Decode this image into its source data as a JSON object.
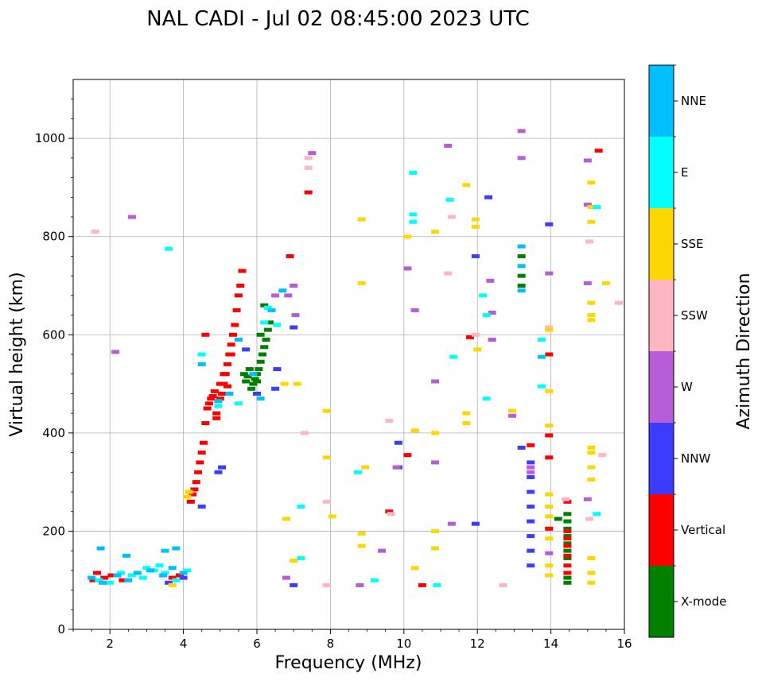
{
  "chart_data": {
    "type": "scatter",
    "title": "NAL CADI - Jul 02 08:45:00 2023 UTC",
    "xlabel": "Frequency (MHz)",
    "ylabel": "Virtual height (km)",
    "xlim": [
      1,
      16
    ],
    "ylim": [
      0,
      1120
    ],
    "xticks": [
      2,
      4,
      6,
      8,
      10,
      12,
      14,
      16
    ],
    "yticks": [
      0,
      200,
      400,
      600,
      800,
      1000
    ],
    "grid": true,
    "colorbar": {
      "label": "Azimuth Direction",
      "entries": [
        {
          "name": "X-mode",
          "color": "#008000"
        },
        {
          "name": "Vertical",
          "color": "#ff0000"
        },
        {
          "name": "NNW",
          "color": "#3c3cff"
        },
        {
          "name": "W",
          "color": "#b65cd6"
        },
        {
          "name": "SSW",
          "color": "#ffb6c1"
        },
        {
          "name": "SSE",
          "color": "#ffd700"
        },
        {
          "name": "E",
          "color": "#00ffff"
        },
        {
          "name": "NNE",
          "color": "#00bfff"
        }
      ]
    },
    "series": [
      {
        "name": "X-mode",
        "points": [
          [
            5.85,
            490
          ],
          [
            5.9,
            500
          ],
          [
            5.95,
            510
          ],
          [
            6.0,
            520
          ],
          [
            6.05,
            530
          ],
          [
            6.1,
            545
          ],
          [
            6.15,
            560
          ],
          [
            6.2,
            575
          ],
          [
            6.25,
            590
          ],
          [
            6.3,
            610
          ],
          [
            6.35,
            625
          ],
          [
            6.2,
            660
          ],
          [
            5.7,
            505
          ],
          [
            5.75,
            515
          ],
          [
            5.8,
            530
          ],
          [
            5.65,
            520
          ],
          [
            6.0,
            505
          ],
          [
            6.1,
            600
          ],
          [
            14.45,
            95
          ],
          [
            14.45,
            105
          ],
          [
            14.45,
            145
          ],
          [
            14.45,
            160
          ],
          [
            14.45,
            175
          ],
          [
            14.45,
            190
          ],
          [
            14.45,
            205
          ],
          [
            14.45,
            220
          ],
          [
            14.45,
            235
          ],
          [
            14.2,
            225
          ],
          [
            13.2,
            700
          ],
          [
            13.2,
            720
          ],
          [
            13.2,
            760
          ]
        ]
      },
      {
        "name": "Vertical",
        "points": [
          [
            1.55,
            100
          ],
          [
            1.65,
            115
          ],
          [
            1.85,
            105
          ],
          [
            2.05,
            110
          ],
          [
            2.35,
            100
          ],
          [
            3.7,
            105
          ],
          [
            3.9,
            110
          ],
          [
            4.2,
            260
          ],
          [
            4.25,
            275
          ],
          [
            4.3,
            285
          ],
          [
            4.35,
            300
          ],
          [
            4.4,
            320
          ],
          [
            4.45,
            340
          ],
          [
            4.5,
            360
          ],
          [
            4.55,
            380
          ],
          [
            4.6,
            420
          ],
          [
            4.65,
            450
          ],
          [
            4.7,
            460
          ],
          [
            4.75,
            470
          ],
          [
            4.8,
            475
          ],
          [
            4.85,
            485
          ],
          [
            4.9,
            440
          ],
          [
            4.95,
            455
          ],
          [
            5.0,
            470
          ],
          [
            5.05,
            480
          ],
          [
            5.1,
            500
          ],
          [
            5.15,
            520
          ],
          [
            5.2,
            540
          ],
          [
            5.25,
            560
          ],
          [
            5.3,
            580
          ],
          [
            5.35,
            600
          ],
          [
            5.4,
            620
          ],
          [
            5.45,
            650
          ],
          [
            5.5,
            680
          ],
          [
            5.55,
            700
          ],
          [
            5.6,
            730
          ],
          [
            4.6,
            600
          ],
          [
            5.0,
            500
          ],
          [
            5.2,
            495
          ],
          [
            5.3,
            560
          ],
          [
            5.1,
            520
          ],
          [
            4.9,
            430
          ],
          [
            6.9,
            760
          ],
          [
            7.4,
            890
          ],
          [
            9.6,
            240
          ],
          [
            10.1,
            355
          ],
          [
            10.5,
            90
          ],
          [
            11.8,
            595
          ],
          [
            13.45,
            375
          ],
          [
            13.95,
            560
          ],
          [
            13.95,
            395
          ],
          [
            13.95,
            350
          ],
          [
            13.95,
            205
          ],
          [
            14.45,
            115
          ],
          [
            14.45,
            130
          ],
          [
            14.45,
            150
          ],
          [
            14.45,
            170
          ],
          [
            14.45,
            185
          ],
          [
            14.45,
            200
          ],
          [
            14.45,
            260
          ],
          [
            15.3,
            975
          ]
        ]
      },
      {
        "name": "NNW",
        "points": [
          [
            3.6,
            95
          ],
          [
            4.0,
            105
          ],
          [
            4.5,
            250
          ],
          [
            5.05,
            330
          ],
          [
            4.95,
            320
          ],
          [
            5.7,
            570
          ],
          [
            6.0,
            480
          ],
          [
            6.5,
            490
          ],
          [
            6.55,
            530
          ],
          [
            7.0,
            615
          ],
          [
            7.0,
            90
          ],
          [
            9.85,
            380
          ],
          [
            9.85,
            330
          ],
          [
            11.95,
            215
          ],
          [
            11.95,
            760
          ],
          [
            12.3,
            880
          ],
          [
            13.2,
            370
          ],
          [
            13.45,
            340
          ],
          [
            13.45,
            310
          ],
          [
            13.45,
            280
          ],
          [
            13.45,
            250
          ],
          [
            13.45,
            220
          ],
          [
            13.45,
            190
          ],
          [
            13.45,
            160
          ],
          [
            13.45,
            130
          ],
          [
            13.95,
            825
          ]
        ]
      },
      {
        "name": "W",
        "points": [
          [
            2.15,
            565
          ],
          [
            2.6,
            840
          ],
          [
            7.0,
            700
          ],
          [
            7.05,
            640
          ],
          [
            6.85,
            680
          ],
          [
            6.5,
            680
          ],
          [
            7.5,
            970
          ],
          [
            8.8,
            90
          ],
          [
            9.4,
            160
          ],
          [
            9.8,
            330
          ],
          [
            10.1,
            735
          ],
          [
            10.3,
            650
          ],
          [
            10.85,
            505
          ],
          [
            10.85,
            340
          ],
          [
            11.2,
            985
          ],
          [
            11.3,
            215
          ],
          [
            12.35,
            710
          ],
          [
            12.4,
            590
          ],
          [
            12.4,
            645
          ],
          [
            12.95,
            435
          ],
          [
            13.2,
            1015
          ],
          [
            13.2,
            960
          ],
          [
            13.45,
            330
          ],
          [
            13.45,
            320
          ],
          [
            13.95,
            725
          ],
          [
            13.95,
            155
          ],
          [
            15.0,
            955
          ],
          [
            15.0,
            865
          ],
          [
            15.0,
            705
          ],
          [
            15.0,
            265
          ],
          [
            6.8,
            105
          ]
        ]
      },
      {
        "name": "SSW",
        "points": [
          [
            1.6,
            810
          ],
          [
            7.4,
            960
          ],
          [
            7.4,
            940
          ],
          [
            7.3,
            400
          ],
          [
            7.9,
            260
          ],
          [
            7.9,
            90
          ],
          [
            9.6,
            425
          ],
          [
            9.65,
            235
          ],
          [
            11.3,
            840
          ],
          [
            11.2,
            725
          ],
          [
            11.95,
            600
          ],
          [
            12.7,
            90
          ],
          [
            13.95,
            615
          ],
          [
            14.4,
            265
          ],
          [
            15.05,
            790
          ],
          [
            15.05,
            225
          ],
          [
            15.4,
            355
          ],
          [
            15.85,
            665
          ]
        ]
      },
      {
        "name": "SSE",
        "points": [
          [
            4.1,
            270
          ],
          [
            4.15,
            280
          ],
          [
            3.7,
            90
          ],
          [
            6.75,
            500
          ],
          [
            7.1,
            500
          ],
          [
            6.8,
            225
          ],
          [
            7.0,
            140
          ],
          [
            7.2,
            145
          ],
          [
            7.9,
            445
          ],
          [
            7.9,
            350
          ],
          [
            8.05,
            230
          ],
          [
            8.85,
            835
          ],
          [
            8.85,
            705
          ],
          [
            8.95,
            330
          ],
          [
            8.85,
            195
          ],
          [
            8.85,
            170
          ],
          [
            10.1,
            800
          ],
          [
            10.3,
            405
          ],
          [
            10.3,
            125
          ],
          [
            10.85,
            810
          ],
          [
            10.85,
            400
          ],
          [
            10.85,
            200
          ],
          [
            10.85,
            165
          ],
          [
            11.7,
            905
          ],
          [
            11.7,
            440
          ],
          [
            11.7,
            420
          ],
          [
            11.95,
            835
          ],
          [
            11.95,
            820
          ],
          [
            12.0,
            570
          ],
          [
            12.95,
            445
          ],
          [
            13.95,
            610
          ],
          [
            13.95,
            485
          ],
          [
            13.95,
            415
          ],
          [
            13.95,
            275
          ],
          [
            13.95,
            250
          ],
          [
            13.95,
            230
          ],
          [
            13.95,
            185
          ],
          [
            13.95,
            130
          ],
          [
            13.95,
            110
          ],
          [
            15.1,
            910
          ],
          [
            15.1,
            860
          ],
          [
            15.1,
            830
          ],
          [
            15.1,
            665
          ],
          [
            15.1,
            640
          ],
          [
            15.1,
            630
          ],
          [
            15.1,
            370
          ],
          [
            15.1,
            360
          ],
          [
            15.1,
            330
          ],
          [
            15.1,
            305
          ],
          [
            15.1,
            145
          ],
          [
            15.1,
            115
          ],
          [
            15.1,
            95
          ],
          [
            15.5,
            705
          ]
        ]
      },
      {
        "name": "E",
        "points": [
          [
            1.7,
            100
          ],
          [
            2.0,
            95
          ],
          [
            2.3,
            115
          ],
          [
            2.6,
            110
          ],
          [
            2.9,
            105
          ],
          [
            3.2,
            120
          ],
          [
            3.5,
            115
          ],
          [
            3.8,
            100
          ],
          [
            4.1,
            120
          ],
          [
            3.35,
            130
          ],
          [
            3.0,
            125
          ],
          [
            3.6,
            775
          ],
          [
            4.5,
            560
          ],
          [
            5.5,
            460
          ],
          [
            4.95,
            455
          ],
          [
            6.3,
            655
          ],
          [
            6.2,
            625
          ],
          [
            6.55,
            620
          ],
          [
            7.2,
            250
          ],
          [
            7.2,
            145
          ],
          [
            8.75,
            320
          ],
          [
            9.2,
            100
          ],
          [
            10.25,
            930
          ],
          [
            10.25,
            845
          ],
          [
            10.25,
            830
          ],
          [
            10.9,
            90
          ],
          [
            11.25,
            875
          ],
          [
            11.35,
            555
          ],
          [
            12.25,
            470
          ],
          [
            12.15,
            680
          ],
          [
            12.25,
            640
          ],
          [
            13.75,
            495
          ],
          [
            13.75,
            590
          ],
          [
            15.25,
            860
          ],
          [
            15.25,
            235
          ]
        ]
      },
      {
        "name": "NNE",
        "points": [
          [
            1.5,
            105
          ],
          [
            1.8,
            95
          ],
          [
            2.2,
            110
          ],
          [
            2.5,
            100
          ],
          [
            2.75,
            115
          ],
          [
            3.1,
            120
          ],
          [
            3.45,
            110
          ],
          [
            3.7,
            125
          ],
          [
            4.0,
            115
          ],
          [
            3.8,
            165
          ],
          [
            3.5,
            160
          ],
          [
            1.75,
            165
          ],
          [
            2.45,
            150
          ],
          [
            4.5,
            540
          ],
          [
            4.95,
            465
          ],
          [
            5.25,
            480
          ],
          [
            5.5,
            590
          ],
          [
            5.9,
            520
          ],
          [
            6.1,
            470
          ],
          [
            6.4,
            650
          ],
          [
            6.7,
            690
          ],
          [
            13.2,
            780
          ],
          [
            13.2,
            740
          ],
          [
            13.2,
            690
          ],
          [
            13.75,
            555
          ]
        ]
      }
    ]
  }
}
